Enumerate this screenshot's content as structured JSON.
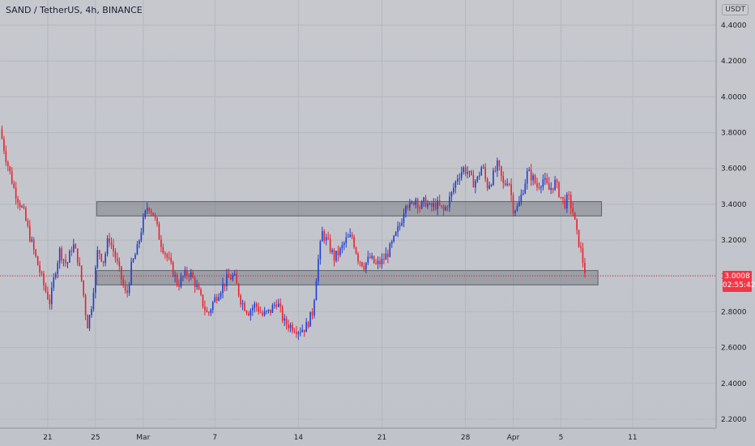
{
  "chart_data": {
    "type": "candlestick",
    "title": "SAND / TetherUS, 4h, BINANCE",
    "currency": "USDT",
    "y_range": [
      2.15,
      4.45
    ],
    "y_ticks": [
      "4.4000",
      "4.2000",
      "4.0000",
      "3.8000",
      "3.6000",
      "3.4000",
      "3.2000",
      "3.0000",
      "2.8000",
      "2.6000",
      "2.4000",
      "2.2000"
    ],
    "x_ticks": [
      {
        "label": "21",
        "day": 0
      },
      {
        "label": "25",
        "day": 4
      },
      {
        "label": "Mar",
        "day": 8
      },
      {
        "label": "7",
        "day": 14
      },
      {
        "label": "14",
        "day": 21
      },
      {
        "label": "21",
        "day": 28
      },
      {
        "label": "28",
        "day": 35
      },
      {
        "label": "Apr",
        "day": 39
      },
      {
        "label": "5",
        "day": 43
      },
      {
        "label": "11",
        "day": 49
      }
    ],
    "x_range_days": [
      -4,
      56
    ],
    "last_price": "3.0008",
    "countdown": "02:55:42",
    "zones": [
      {
        "day_start": 4.1,
        "day_end": 46.4,
        "low": 3.335,
        "high": 3.415
      },
      {
        "day_start": 4.1,
        "day_end": 46.1,
        "low": 2.95,
        "high": 3.03
      }
    ],
    "anchors": [
      [
        -4.0,
        3.82
      ],
      [
        -3.5,
        3.66
      ],
      [
        -2.8,
        3.48
      ],
      [
        -2.0,
        3.35
      ],
      [
        -1.5,
        3.22
      ],
      [
        -1.0,
        3.1
      ],
      [
        -0.3,
        2.94
      ],
      [
        0.2,
        2.85
      ],
      [
        0.6,
        3.02
      ],
      [
        1.0,
        3.14
      ],
      [
        1.6,
        3.06
      ],
      [
        2.1,
        3.18
      ],
      [
        2.5,
        3.1
      ],
      [
        2.9,
        2.95
      ],
      [
        3.3,
        2.72
      ],
      [
        3.6,
        2.8
      ],
      [
        4.2,
        3.15
      ],
      [
        4.7,
        3.08
      ],
      [
        5.1,
        3.22
      ],
      [
        5.6,
        3.12
      ],
      [
        6.1,
        3.0
      ],
      [
        6.6,
        2.88
      ],
      [
        7.0,
        3.05
      ],
      [
        7.5,
        3.15
      ],
      [
        7.9,
        3.28
      ],
      [
        8.4,
        3.4
      ],
      [
        8.9,
        3.34
      ],
      [
        9.4,
        3.2
      ],
      [
        9.9,
        3.12
      ],
      [
        10.4,
        3.04
      ],
      [
        10.9,
        2.95
      ],
      [
        11.4,
        3.0
      ],
      [
        11.9,
        3.02
      ],
      [
        12.4,
        2.95
      ],
      [
        12.9,
        2.86
      ],
      [
        13.4,
        2.78
      ],
      [
        13.9,
        2.86
      ],
      [
        14.4,
        2.92
      ],
      [
        15.0,
        2.98
      ],
      [
        15.6,
        3.0
      ],
      [
        16.2,
        2.86
      ],
      [
        16.8,
        2.8
      ],
      [
        17.4,
        2.84
      ],
      [
        18.0,
        2.78
      ],
      [
        18.6,
        2.8
      ],
      [
        19.2,
        2.86
      ],
      [
        19.8,
        2.74
      ],
      [
        20.4,
        2.72
      ],
      [
        21.0,
        2.7
      ],
      [
        21.6,
        2.71
      ],
      [
        22.2,
        2.8
      ],
      [
        22.6,
        3.06
      ],
      [
        23.0,
        3.24
      ],
      [
        23.5,
        3.18
      ],
      [
        24.0,
        3.1
      ],
      [
        24.5,
        3.14
      ],
      [
        25.0,
        3.2
      ],
      [
        25.5,
        3.22
      ],
      [
        26.0,
        3.1
      ],
      [
        26.5,
        3.06
      ],
      [
        27.0,
        3.1
      ],
      [
        27.5,
        3.06
      ],
      [
        28.0,
        3.08
      ],
      [
        28.6,
        3.14
      ],
      [
        29.0,
        3.2
      ],
      [
        29.6,
        3.3
      ],
      [
        30.0,
        3.42
      ],
      [
        30.4,
        3.38
      ],
      [
        30.8,
        3.44
      ],
      [
        31.2,
        3.38
      ],
      [
        31.6,
        3.42
      ],
      [
        32.0,
        3.38
      ],
      [
        32.6,
        3.4
      ],
      [
        33.2,
        3.36
      ],
      [
        33.8,
        3.45
      ],
      [
        34.3,
        3.55
      ],
      [
        34.8,
        3.6
      ],
      [
        35.2,
        3.58
      ],
      [
        35.6,
        3.52
      ],
      [
        36.0,
        3.54
      ],
      [
        36.4,
        3.62
      ],
      [
        36.8,
        3.5
      ],
      [
        37.2,
        3.54
      ],
      [
        37.7,
        3.62
      ],
      [
        38.2,
        3.5
      ],
      [
        38.6,
        3.55
      ],
      [
        39.0,
        3.38
      ],
      [
        39.4,
        3.38
      ],
      [
        39.8,
        3.48
      ],
      [
        40.2,
        3.58
      ],
      [
        40.6,
        3.55
      ],
      [
        41.0,
        3.5
      ],
      [
        41.5,
        3.54
      ],
      [
        42.0,
        3.48
      ],
      [
        42.5,
        3.52
      ],
      [
        43.0,
        3.44
      ],
      [
        43.3,
        3.4
      ],
      [
        43.6,
        3.44
      ],
      [
        44.0,
        3.36
      ],
      [
        44.3,
        3.24
      ],
      [
        44.6,
        3.16
      ],
      [
        44.9,
        3.06
      ],
      [
        45.1,
        3.0008
      ]
    ]
  }
}
